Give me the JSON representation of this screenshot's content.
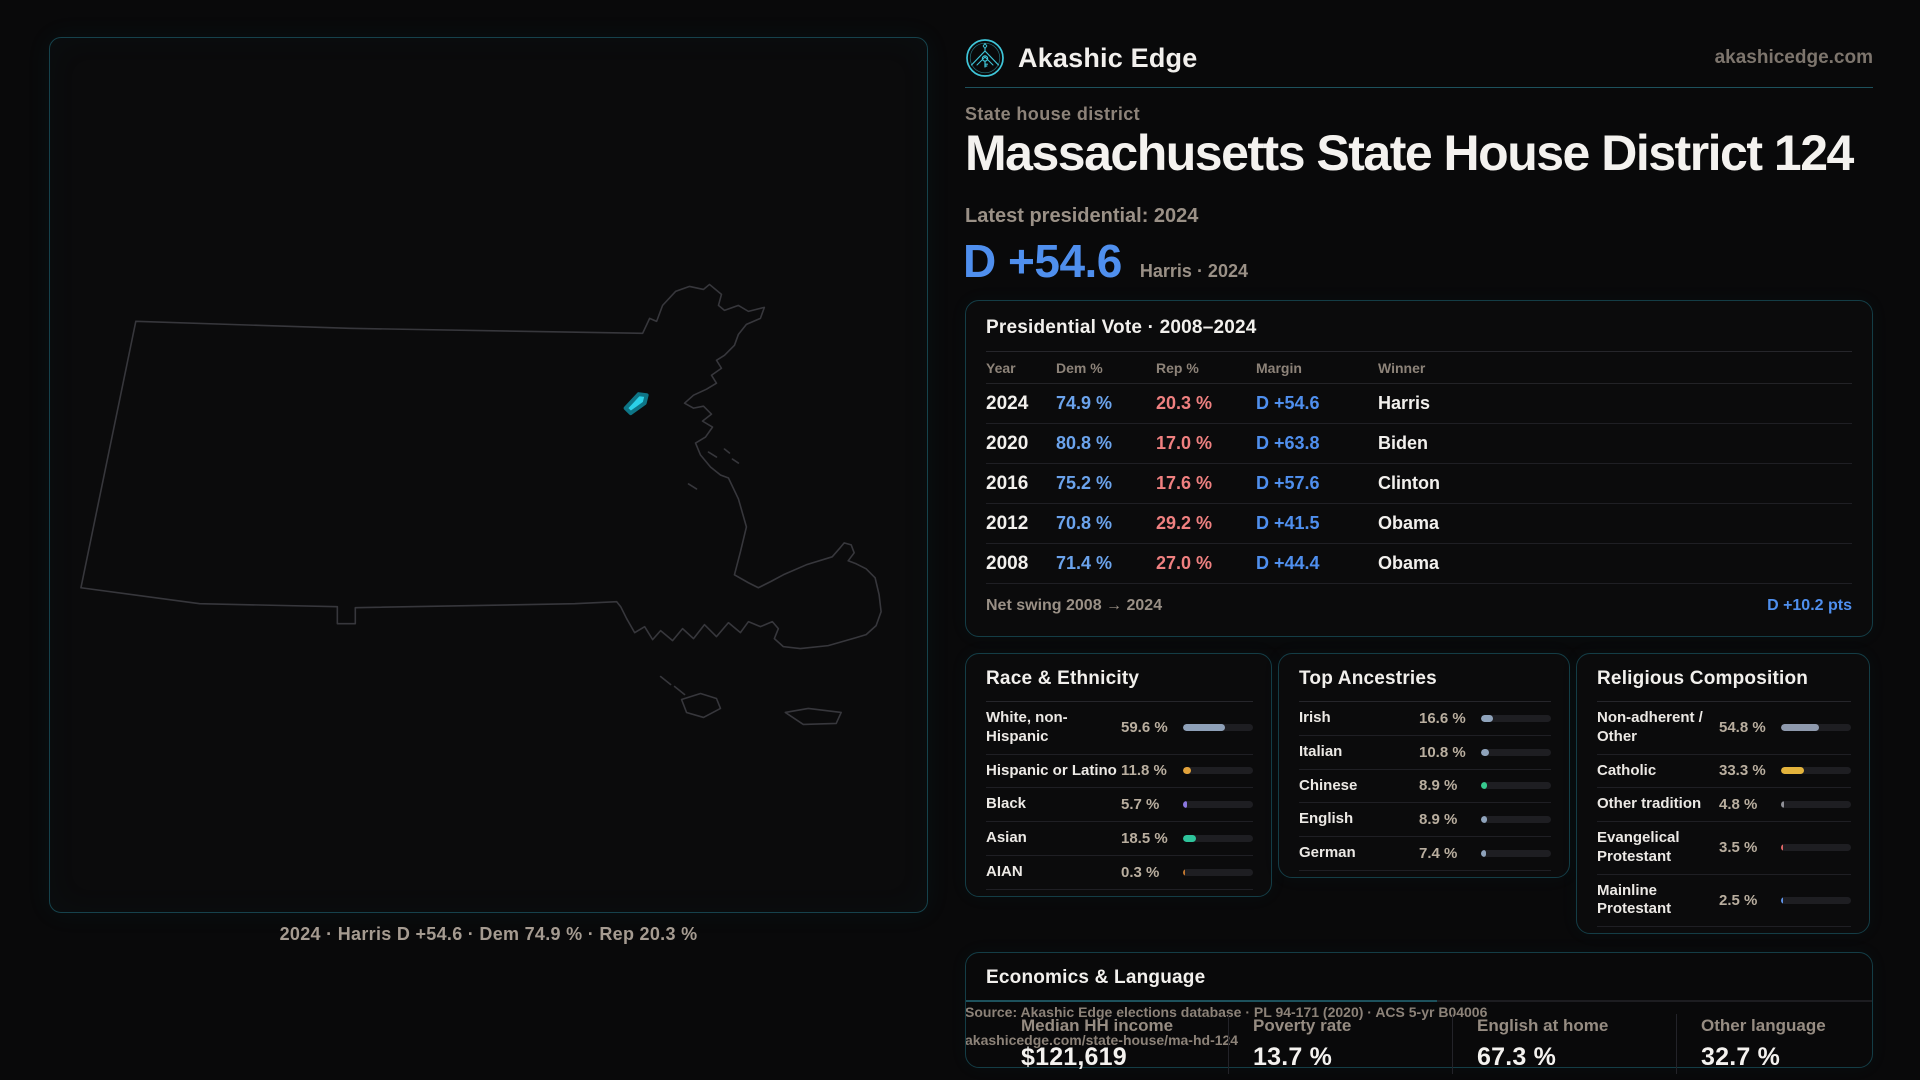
{
  "brand": {
    "name": "Akashic Edge",
    "domain": "akashicedge.com"
  },
  "page": {
    "kicker": "State house district",
    "title": "Massachusetts State House District 124",
    "latest_label": "Latest presidential: 2024",
    "headline_margin": "D +54.6",
    "headline_context": "Harris · 2024"
  },
  "map": {
    "caption": "2024 · Harris D +54.6 · Dem 74.9 % · Rep 20.3 %",
    "district_color": "#2bd1e8",
    "outline_color": "#37373c"
  },
  "presidential_table": {
    "title": "Presidential Vote · 2008–2024",
    "columns": [
      "Year",
      "Dem %",
      "Rep %",
      "Margin",
      "Winner"
    ],
    "rows": [
      {
        "year": "2024",
        "dem": "74.9 %",
        "rep": "20.3 %",
        "margin": "D +54.6",
        "winner": "Harris"
      },
      {
        "year": "2020",
        "dem": "80.8 %",
        "rep": "17.0 %",
        "margin": "D +63.8",
        "winner": "Biden"
      },
      {
        "year": "2016",
        "dem": "75.2 %",
        "rep": "17.6 %",
        "margin": "D +57.6",
        "winner": "Clinton"
      },
      {
        "year": "2012",
        "dem": "70.8 %",
        "rep": "29.2 %",
        "margin": "D +41.5",
        "winner": "Obama"
      },
      {
        "year": "2008",
        "dem": "71.4 %",
        "rep": "27.0 %",
        "margin": "D +44.4",
        "winner": "Obama"
      }
    ],
    "net_swing_label": "Net swing 2008 → 2024",
    "net_swing_value": "D +10.2 pts"
  },
  "race_panel": {
    "title": "Race & Ethnicity",
    "rows": [
      {
        "label": "White, non-\nHispanic",
        "value": "59.6 %",
        "pct": 59.6,
        "color": "#8ea0b8"
      },
      {
        "label": "Hispanic or Latino",
        "value": "11.8 %",
        "pct": 11.8,
        "color": "#e2a23b"
      },
      {
        "label": "Black",
        "value": "5.7 %",
        "pct": 5.7,
        "color": "#8b78e0"
      },
      {
        "label": "Asian",
        "value": "18.5 %",
        "pct": 18.5,
        "color": "#2ec49b"
      },
      {
        "label": "AIAN",
        "value": "0.3 %",
        "pct": 0.3,
        "color": "#c0762f"
      }
    ]
  },
  "ancestry_panel": {
    "title": "Top Ancestries",
    "rows": [
      {
        "label": "Irish",
        "value": "16.6 %",
        "pct": 16.6,
        "color": "#8fa3bb"
      },
      {
        "label": "Italian",
        "value": "10.8 %",
        "pct": 10.8,
        "color": "#8fa3bb"
      },
      {
        "label": "Chinese",
        "value": "8.9 %",
        "pct": 8.9,
        "color": "#37c98e"
      },
      {
        "label": "English",
        "value": "8.9 %",
        "pct": 8.9,
        "color": "#8fa3bb"
      },
      {
        "label": "German",
        "value": "7.4 %",
        "pct": 7.4,
        "color": "#8fa3bb"
      }
    ]
  },
  "religion_panel": {
    "title": "Religious Composition",
    "rows": [
      {
        "label": "Non-adherent /\nOther",
        "value": "54.8 %",
        "pct": 54.8,
        "color": "#8e99ad"
      },
      {
        "label": "Catholic",
        "value": "33.3 %",
        "pct": 33.3,
        "color": "#e3b33c"
      },
      {
        "label": "Other tradition",
        "value": "4.8 %",
        "pct": 4.8,
        "color": "#8f9097"
      },
      {
        "label": "Evangelical\nProtestant",
        "value": "3.5 %",
        "pct": 3.5,
        "color": "#e06666"
      },
      {
        "label": "Mainline\nProtestant",
        "value": "2.5 %",
        "pct": 2.5,
        "color": "#5f93e8"
      }
    ]
  },
  "economics_panel": {
    "title": "Economics & Language",
    "stats": [
      {
        "label": "Median HH income",
        "value": "$121,619"
      },
      {
        "label": "Poverty rate",
        "value": "13.7 %"
      },
      {
        "label": "English at home",
        "value": "67.3 %"
      },
      {
        "label": "Other language",
        "value": "32.7 %"
      }
    ]
  },
  "source": {
    "line1": "Source: Akashic Edge elections database · PL 94-171 (2020) · ACS 5-yr B04006",
    "line2": "akashicedge.com/state-house/ma-hd-124"
  }
}
